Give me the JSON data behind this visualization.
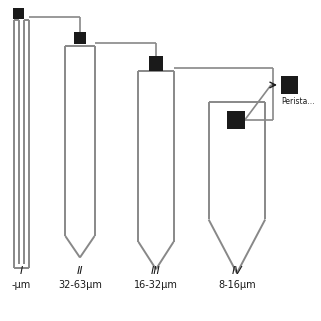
{
  "bg_color": "#ffffff",
  "line_color": "#888888",
  "black": "#1a1a1a",
  "fig_width": 3.21,
  "fig_height": 3.21,
  "dpi": 100,
  "labels_roman": [
    "I",
    "II",
    "III",
    "IV"
  ],
  "labels_size": [
    "-μm",
    "32-63μm",
    "16-32μm",
    "8-16μm"
  ],
  "peristaltic_label": "Perista..."
}
